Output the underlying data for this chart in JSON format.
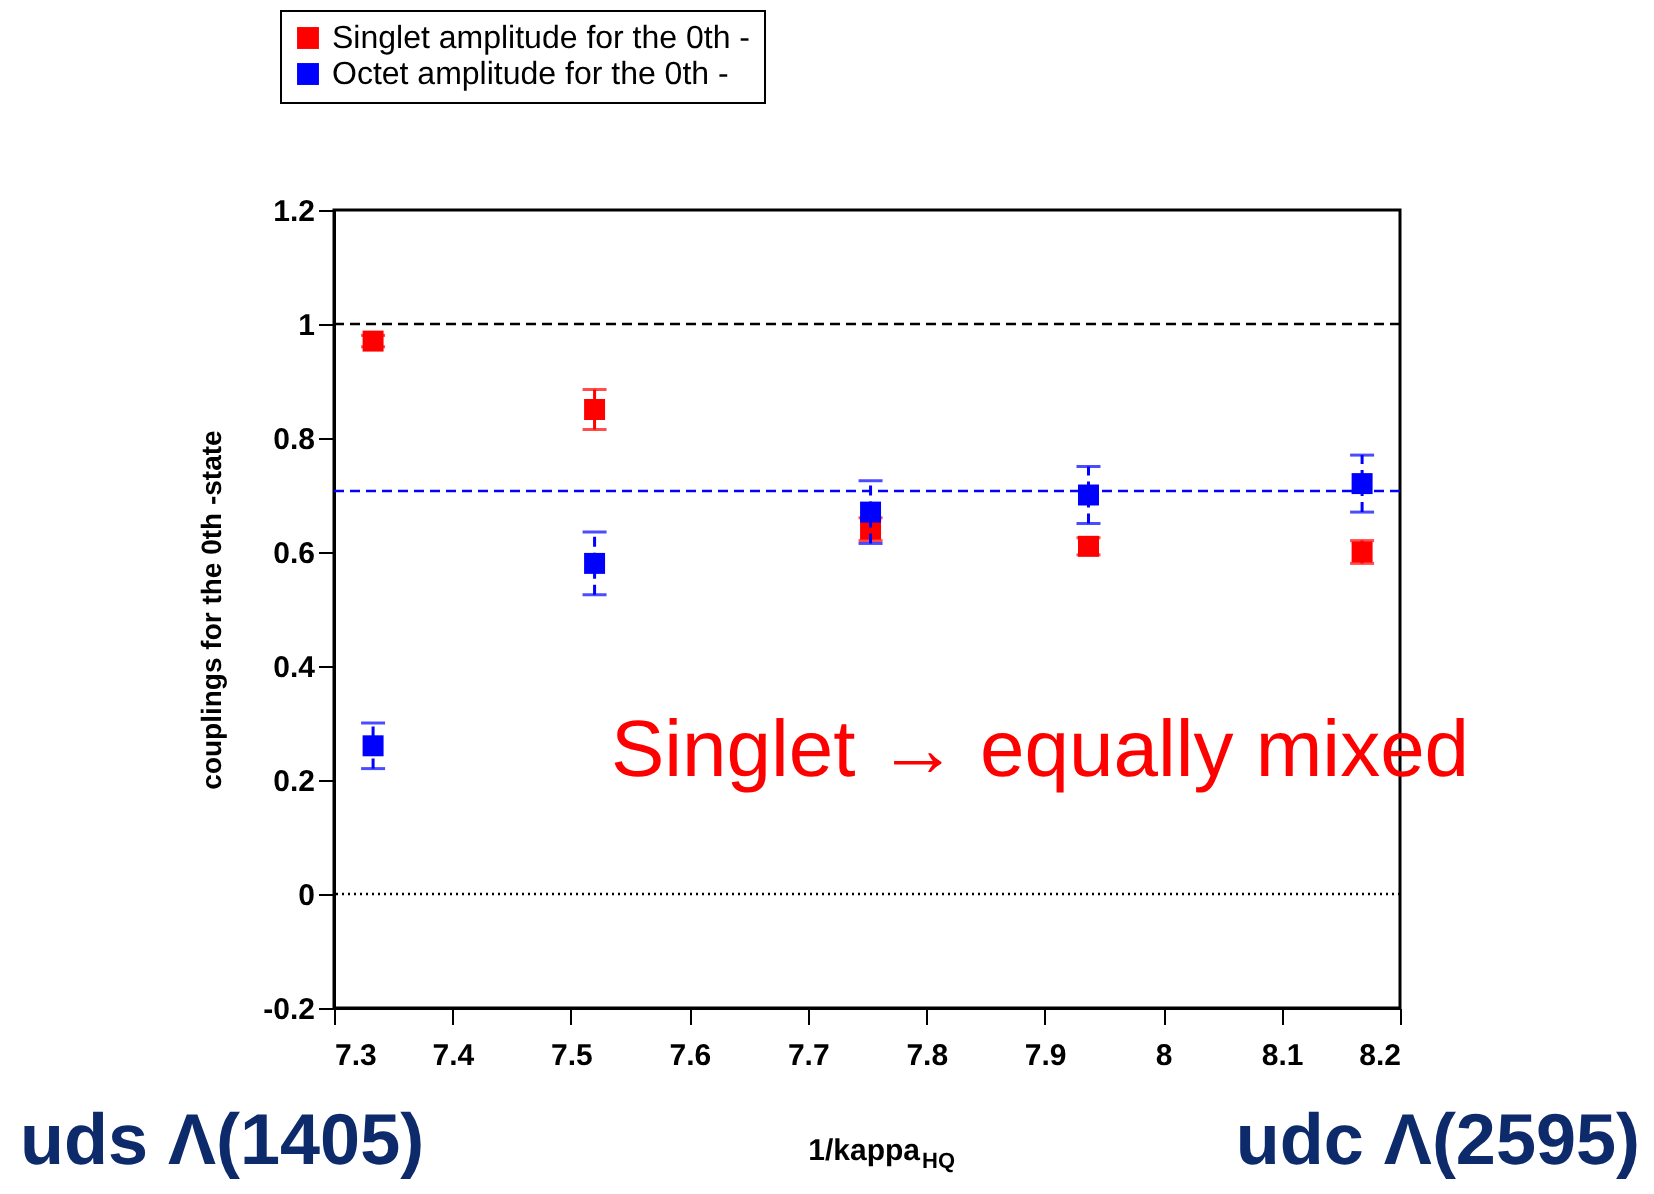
{
  "chart_data": {
    "type": "scatter",
    "xlabel": "1/kappa$_{HQ}$",
    "ylabel": "couplings for the 0th -state",
    "xlim": [
      7.3,
      8.2
    ],
    "xticks": [
      7.3,
      7.4,
      7.5,
      7.6,
      7.7,
      7.8,
      7.9,
      8,
      8.1,
      8.2
    ],
    "ylim": [
      -0.2,
      1.2
    ],
    "yticks": [
      -0.2,
      0,
      0.2,
      0.4,
      0.6,
      0.8,
      1,
      1.2
    ],
    "x": [
      7.333,
      7.52,
      7.753,
      7.937,
      8.168
    ],
    "series": [
      {
        "name": "Singlet amplitude for the 0th -",
        "color": "#ff0000",
        "line_style": "solid",
        "values": [
          0.97,
          0.85,
          0.64,
          0.61,
          0.6
        ],
        "errors": [
          0.01,
          0.035,
          0.02,
          0.015,
          0.02
        ]
      },
      {
        "name": "Octet   amplitude for the 0th -",
        "color": "#0000ff",
        "line_style": "dashed",
        "values": [
          0.26,
          0.58,
          0.67,
          0.7,
          0.72
        ],
        "errors": [
          0.04,
          0.055,
          0.055,
          0.05,
          0.05
        ]
      }
    ],
    "ref_lines": [
      {
        "axis": "y",
        "value": 1,
        "line_style": "dashed",
        "color": "#000000"
      },
      {
        "axis": "y",
        "value": 0,
        "line_style": "dotted",
        "color": "#000000"
      },
      {
        "axis": "y",
        "value": 0.707,
        "line_style": "dashed",
        "color": "#0000ff"
      }
    ],
    "marker": "square",
    "legend": "top",
    "grid": false,
    "annotations": [
      "Singlet → equally mixed",
      "uds Λ(1405)",
      "udc Λ(2595)"
    ]
  }
}
